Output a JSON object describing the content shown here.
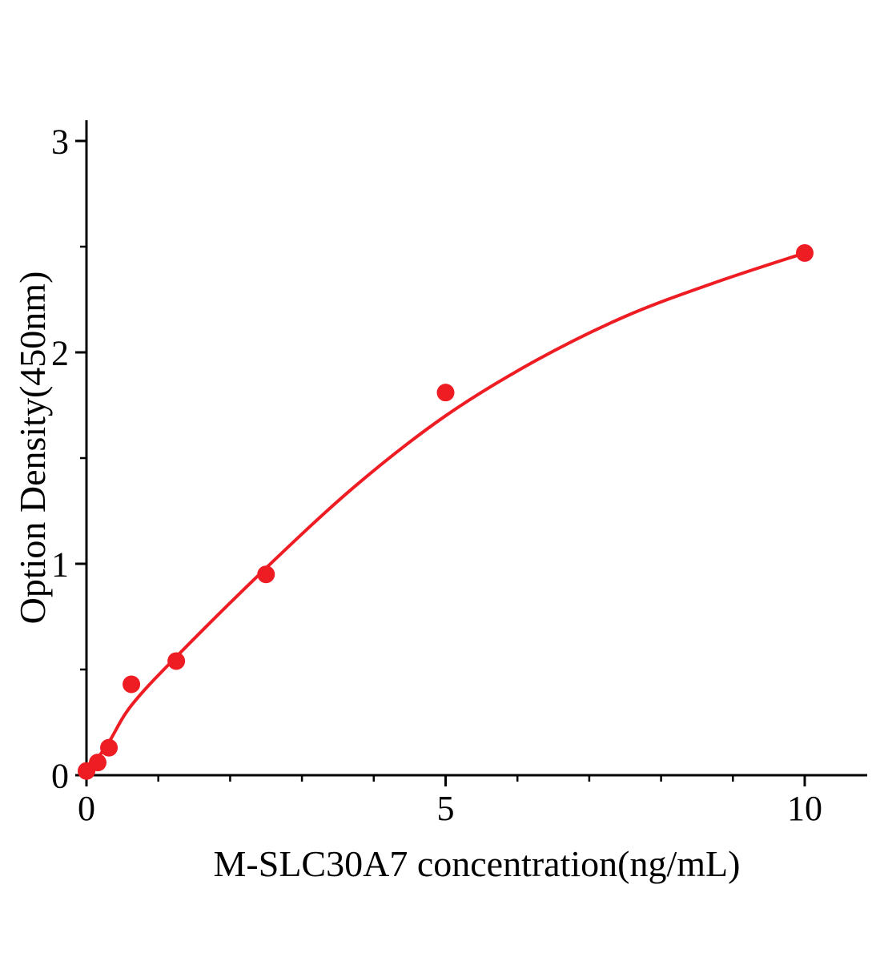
{
  "figure": {
    "background": "#ffffff"
  },
  "chart_data": {
    "type": "scatter",
    "title": "",
    "xlabel": "M-SLC30A7 concentration(ng/mL)",
    "ylabel": "Option Density(450nm)",
    "xlim": [
      0,
      10.87
    ],
    "ylim": [
      0,
      3.1
    ],
    "grid": false,
    "legend": null,
    "axis_color": "#000000",
    "marker_color": "#ee1c23",
    "line_color": "#ee1c23",
    "x_major_ticks": [
      0,
      5,
      10
    ],
    "x_minor_ticks": [
      1,
      2,
      3,
      4,
      6,
      7,
      8,
      9
    ],
    "y_major_ticks": [
      0,
      1,
      2,
      3
    ],
    "y_minor_ticks": [
      0.5,
      1.5,
      2.5
    ],
    "points": [
      {
        "x": 0.0,
        "y": 0.02
      },
      {
        "x": 0.156,
        "y": 0.06
      },
      {
        "x": 0.3125,
        "y": 0.13
      },
      {
        "x": 0.625,
        "y": 0.43
      },
      {
        "x": 1.25,
        "y": 0.54
      },
      {
        "x": 2.5,
        "y": 0.95
      },
      {
        "x": 5.0,
        "y": 1.81
      },
      {
        "x": 10.0,
        "y": 2.47
      }
    ],
    "fit_curve": [
      {
        "x": 0.0,
        "y": 0.01
      },
      {
        "x": 0.3,
        "y": 0.15
      },
      {
        "x": 0.625,
        "y": 0.33
      },
      {
        "x": 1.25,
        "y": 0.56
      },
      {
        "x": 2.5,
        "y": 0.98
      },
      {
        "x": 3.75,
        "y": 1.37
      },
      {
        "x": 5.0,
        "y": 1.7
      },
      {
        "x": 6.25,
        "y": 1.96
      },
      {
        "x": 7.5,
        "y": 2.17
      },
      {
        "x": 8.75,
        "y": 2.33
      },
      {
        "x": 10.0,
        "y": 2.47
      }
    ]
  }
}
